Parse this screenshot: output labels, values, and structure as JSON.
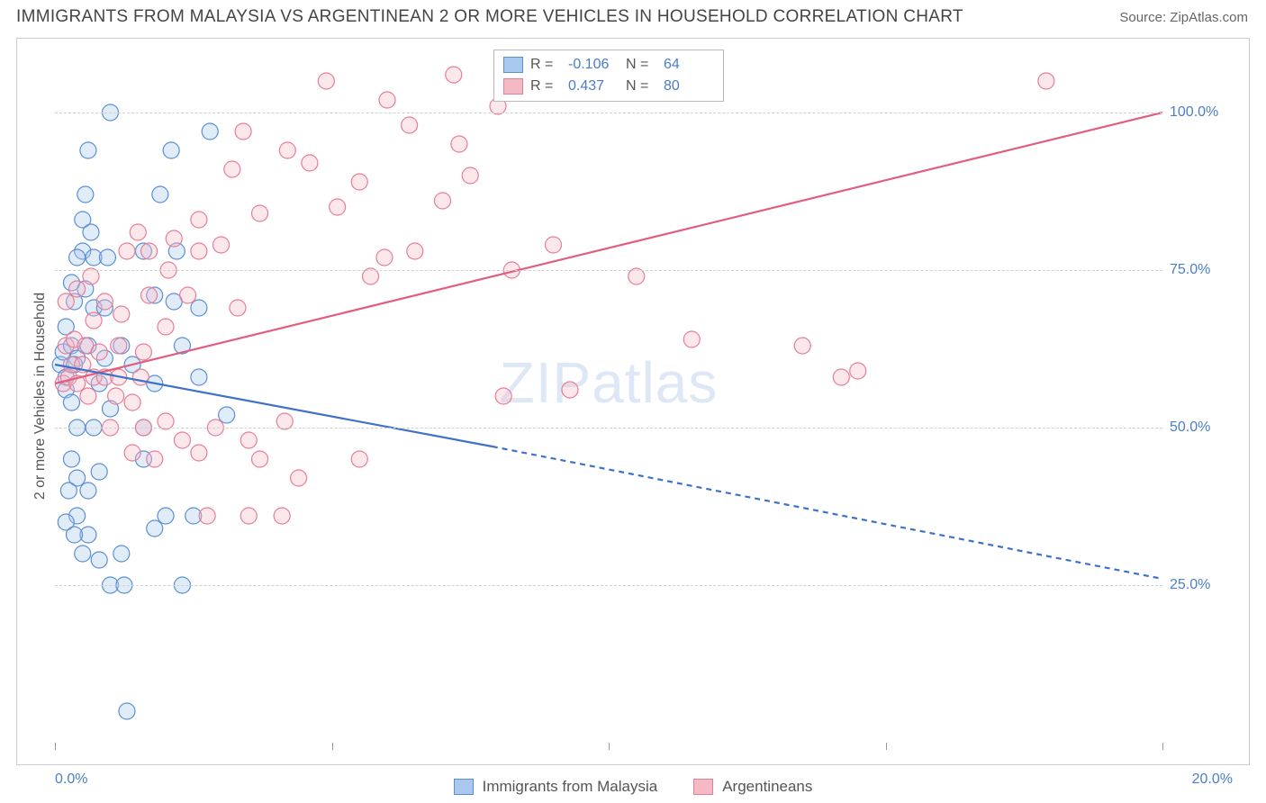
{
  "meta": {
    "title": "IMMIGRANTS FROM MALAYSIA VS ARGENTINEAN 2 OR MORE VEHICLES IN HOUSEHOLD CORRELATION CHART",
    "source_label": "Source:",
    "source_name": "ZipAtlas.com",
    "watermark_a": "ZIP",
    "watermark_b": "atlas"
  },
  "colors": {
    "series1_fill": "#a9c8ef",
    "series1_stroke": "#5b8ed4",
    "series1_line": "#3d72c8",
    "series2_fill": "#f5b9c6",
    "series2_stroke": "#e77d97",
    "series2_line": "#e25e80",
    "axis_text": "#4a7ec9",
    "grid": "#d0d0d0",
    "border": "#cccccc",
    "text": "#555555"
  },
  "axes": {
    "x_min": 0,
    "x_max": 20,
    "y_min": 0,
    "y_max": 110,
    "x_ticks": [
      0,
      5,
      10,
      15,
      20
    ],
    "x_tick_labels": {
      "first": "0.0%",
      "last": "20.0%"
    },
    "y_ticks": [
      25,
      50,
      75,
      100
    ],
    "y_tick_labels": [
      "25.0%",
      "50.0%",
      "75.0%",
      "100.0%"
    ],
    "y_title": "2 or more Vehicles in Household"
  },
  "legend_top": {
    "r_label": "R =",
    "n_label": "N =",
    "rows": [
      {
        "series": 1,
        "r": "-0.106",
        "n": "64"
      },
      {
        "series": 2,
        "r": "0.437",
        "n": "80"
      }
    ]
  },
  "legend_bottom": [
    {
      "series": 1,
      "label": "Immigrants from Malaysia"
    },
    {
      "series": 2,
      "label": "Argentineans"
    }
  ],
  "trend_lines": {
    "series1": {
      "solid": [
        [
          0,
          60
        ],
        [
          7.9,
          47
        ]
      ],
      "dashed": [
        [
          7.9,
          47
        ],
        [
          20,
          26
        ]
      ]
    },
    "series2": {
      "solid": [
        [
          0,
          57
        ],
        [
          20,
          100
        ]
      ]
    }
  },
  "marker_radius": 9,
  "points_s1": [
    [
      0.1,
      60
    ],
    [
      0.15,
      62
    ],
    [
      0.2,
      58
    ],
    [
      0.3,
      63
    ],
    [
      0.2,
      56
    ],
    [
      0.4,
      61
    ],
    [
      0.3,
      54
    ],
    [
      0.5,
      78
    ],
    [
      0.55,
      72
    ],
    [
      0.7,
      69
    ],
    [
      0.6,
      94
    ],
    [
      1.0,
      100
    ],
    [
      0.35,
      60
    ],
    [
      0.6,
      63
    ],
    [
      0.8,
      57
    ],
    [
      0.7,
      50
    ],
    [
      0.4,
      50
    ],
    [
      0.9,
      61
    ],
    [
      1.4,
      60
    ],
    [
      1.6,
      50
    ],
    [
      1.6,
      45
    ],
    [
      1.2,
      63
    ],
    [
      1.8,
      57
    ],
    [
      0.9,
      69
    ],
    [
      1.0,
      53
    ],
    [
      0.3,
      45
    ],
    [
      0.4,
      42
    ],
    [
      0.6,
      40
    ],
    [
      0.4,
      36
    ],
    [
      0.25,
      40
    ],
    [
      0.2,
      35
    ],
    [
      0.6,
      33
    ],
    [
      0.8,
      29
    ],
    [
      1.2,
      30
    ],
    [
      1.8,
      34
    ],
    [
      2.0,
      36
    ],
    [
      2.5,
      36
    ],
    [
      1.0,
      25
    ],
    [
      1.25,
      25
    ],
    [
      2.3,
      25
    ],
    [
      0.2,
      66
    ],
    [
      0.35,
      70
    ],
    [
      0.3,
      73
    ],
    [
      0.4,
      77
    ],
    [
      0.5,
      83
    ],
    [
      0.55,
      87
    ],
    [
      0.7,
      77
    ],
    [
      0.65,
      81
    ],
    [
      0.95,
      77
    ],
    [
      1.6,
      78
    ],
    [
      1.8,
      71
    ],
    [
      2.2,
      78
    ],
    [
      2.6,
      69
    ],
    [
      2.8,
      97
    ],
    [
      2.1,
      94
    ],
    [
      2.15,
      70
    ],
    [
      2.3,
      63
    ],
    [
      2.6,
      58
    ],
    [
      1.3,
      5
    ],
    [
      3.1,
      52
    ],
    [
      1.9,
      87
    ],
    [
      0.8,
      43
    ],
    [
      0.5,
      30
    ],
    [
      0.35,
      33
    ]
  ],
  "points_s2": [
    [
      0.15,
      57
    ],
    [
      0.25,
      58
    ],
    [
      0.3,
      60
    ],
    [
      0.2,
      63
    ],
    [
      0.4,
      57
    ],
    [
      0.35,
      64
    ],
    [
      0.5,
      60
    ],
    [
      0.6,
      55
    ],
    [
      0.55,
      63
    ],
    [
      0.7,
      58
    ],
    [
      0.9,
      58
    ],
    [
      0.8,
      62
    ],
    [
      1.15,
      58
    ],
    [
      1.15,
      63
    ],
    [
      1.4,
      54
    ],
    [
      1.55,
      58
    ],
    [
      1.6,
      62
    ],
    [
      1.2,
      68
    ],
    [
      1.1,
      55
    ],
    [
      0.7,
      67
    ],
    [
      0.9,
      70
    ],
    [
      0.2,
      70
    ],
    [
      0.4,
      72
    ],
    [
      0.65,
      74
    ],
    [
      1.7,
      71
    ],
    [
      2.0,
      66
    ],
    [
      2.05,
      75
    ],
    [
      1.3,
      78
    ],
    [
      1.5,
      81
    ],
    [
      1.7,
      78
    ],
    [
      2.15,
      80
    ],
    [
      2.4,
      71
    ],
    [
      2.6,
      83
    ],
    [
      2.6,
      78
    ],
    [
      3.0,
      79
    ],
    [
      3.3,
      69
    ],
    [
      3.2,
      91
    ],
    [
      3.7,
      84
    ],
    [
      4.2,
      94
    ],
    [
      4.6,
      92
    ],
    [
      5.1,
      85
    ],
    [
      5.5,
      89
    ],
    [
      5.7,
      74
    ],
    [
      5.95,
      77
    ],
    [
      6.0,
      102
    ],
    [
      6.4,
      98
    ],
    [
      6.5,
      78
    ],
    [
      7.2,
      106
    ],
    [
      7.3,
      95
    ],
    [
      7.0,
      86
    ],
    [
      7.5,
      90
    ],
    [
      8.0,
      101
    ],
    [
      8.25,
      75
    ],
    [
      8.1,
      55
    ],
    [
      9.0,
      79
    ],
    [
      9.3,
      56
    ],
    [
      10.5,
      74
    ],
    [
      11.5,
      64
    ],
    [
      13.5,
      63
    ],
    [
      14.2,
      58
    ],
    [
      14.5,
      59
    ],
    [
      17.9,
      105
    ],
    [
      3.4,
      97
    ],
    [
      4.9,
      105
    ],
    [
      1.0,
      50
    ],
    [
      1.6,
      50
    ],
    [
      2.0,
      51
    ],
    [
      1.4,
      46
    ],
    [
      1.8,
      45
    ],
    [
      2.9,
      50
    ],
    [
      2.3,
      48
    ],
    [
      2.6,
      46
    ],
    [
      3.5,
      48
    ],
    [
      3.7,
      45
    ],
    [
      4.15,
      51
    ],
    [
      4.4,
      42
    ],
    [
      5.5,
      45
    ],
    [
      4.1,
      36
    ],
    [
      3.5,
      36
    ],
    [
      2.75,
      36
    ]
  ]
}
